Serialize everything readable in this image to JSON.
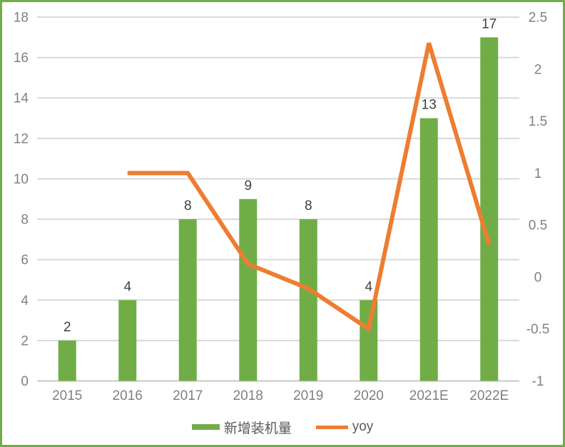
{
  "chart_data": {
    "type": "combo bar+line",
    "title": "",
    "categories": [
      "2015",
      "2016",
      "2017",
      "2018",
      "2019",
      "2020",
      "2021E",
      "2022E"
    ],
    "series": [
      {
        "name": "新增装机量",
        "type": "bar",
        "axis": "left",
        "color": "#70AD47",
        "values": [
          2,
          4,
          8,
          9,
          8,
          4,
          13,
          17
        ],
        "data_labels": [
          "2",
          "4",
          "8",
          "9",
          "8",
          "4",
          "13",
          "17"
        ]
      },
      {
        "name": "yoy",
        "type": "line",
        "axis": "right",
        "color": "#ED7D31",
        "values": [
          null,
          1,
          1,
          0.125,
          -0.111,
          -0.5,
          2.25,
          0.308
        ]
      }
    ],
    "left_axis": {
      "min": 0,
      "max": 18,
      "step": 2,
      "ticks": [
        "18",
        "16",
        "14",
        "12",
        "10",
        "8",
        "6",
        "4",
        "2",
        "0"
      ]
    },
    "right_axis": {
      "min": -1,
      "max": 2.5,
      "step": 0.5,
      "ticks": [
        "2.5",
        "2",
        "1.5",
        "1",
        "0.5",
        "0",
        "-0.5",
        "-1"
      ]
    },
    "grid": true,
    "legend_position": "bottom-center",
    "colors": {
      "grid": "#D9D9D9",
      "axis_line": "#C9C9C9",
      "tick_label": "#808080",
      "data_label": "#404040",
      "legend_text": "#595959",
      "frame": "#70AD47",
      "background": "#FFFFFF"
    }
  }
}
